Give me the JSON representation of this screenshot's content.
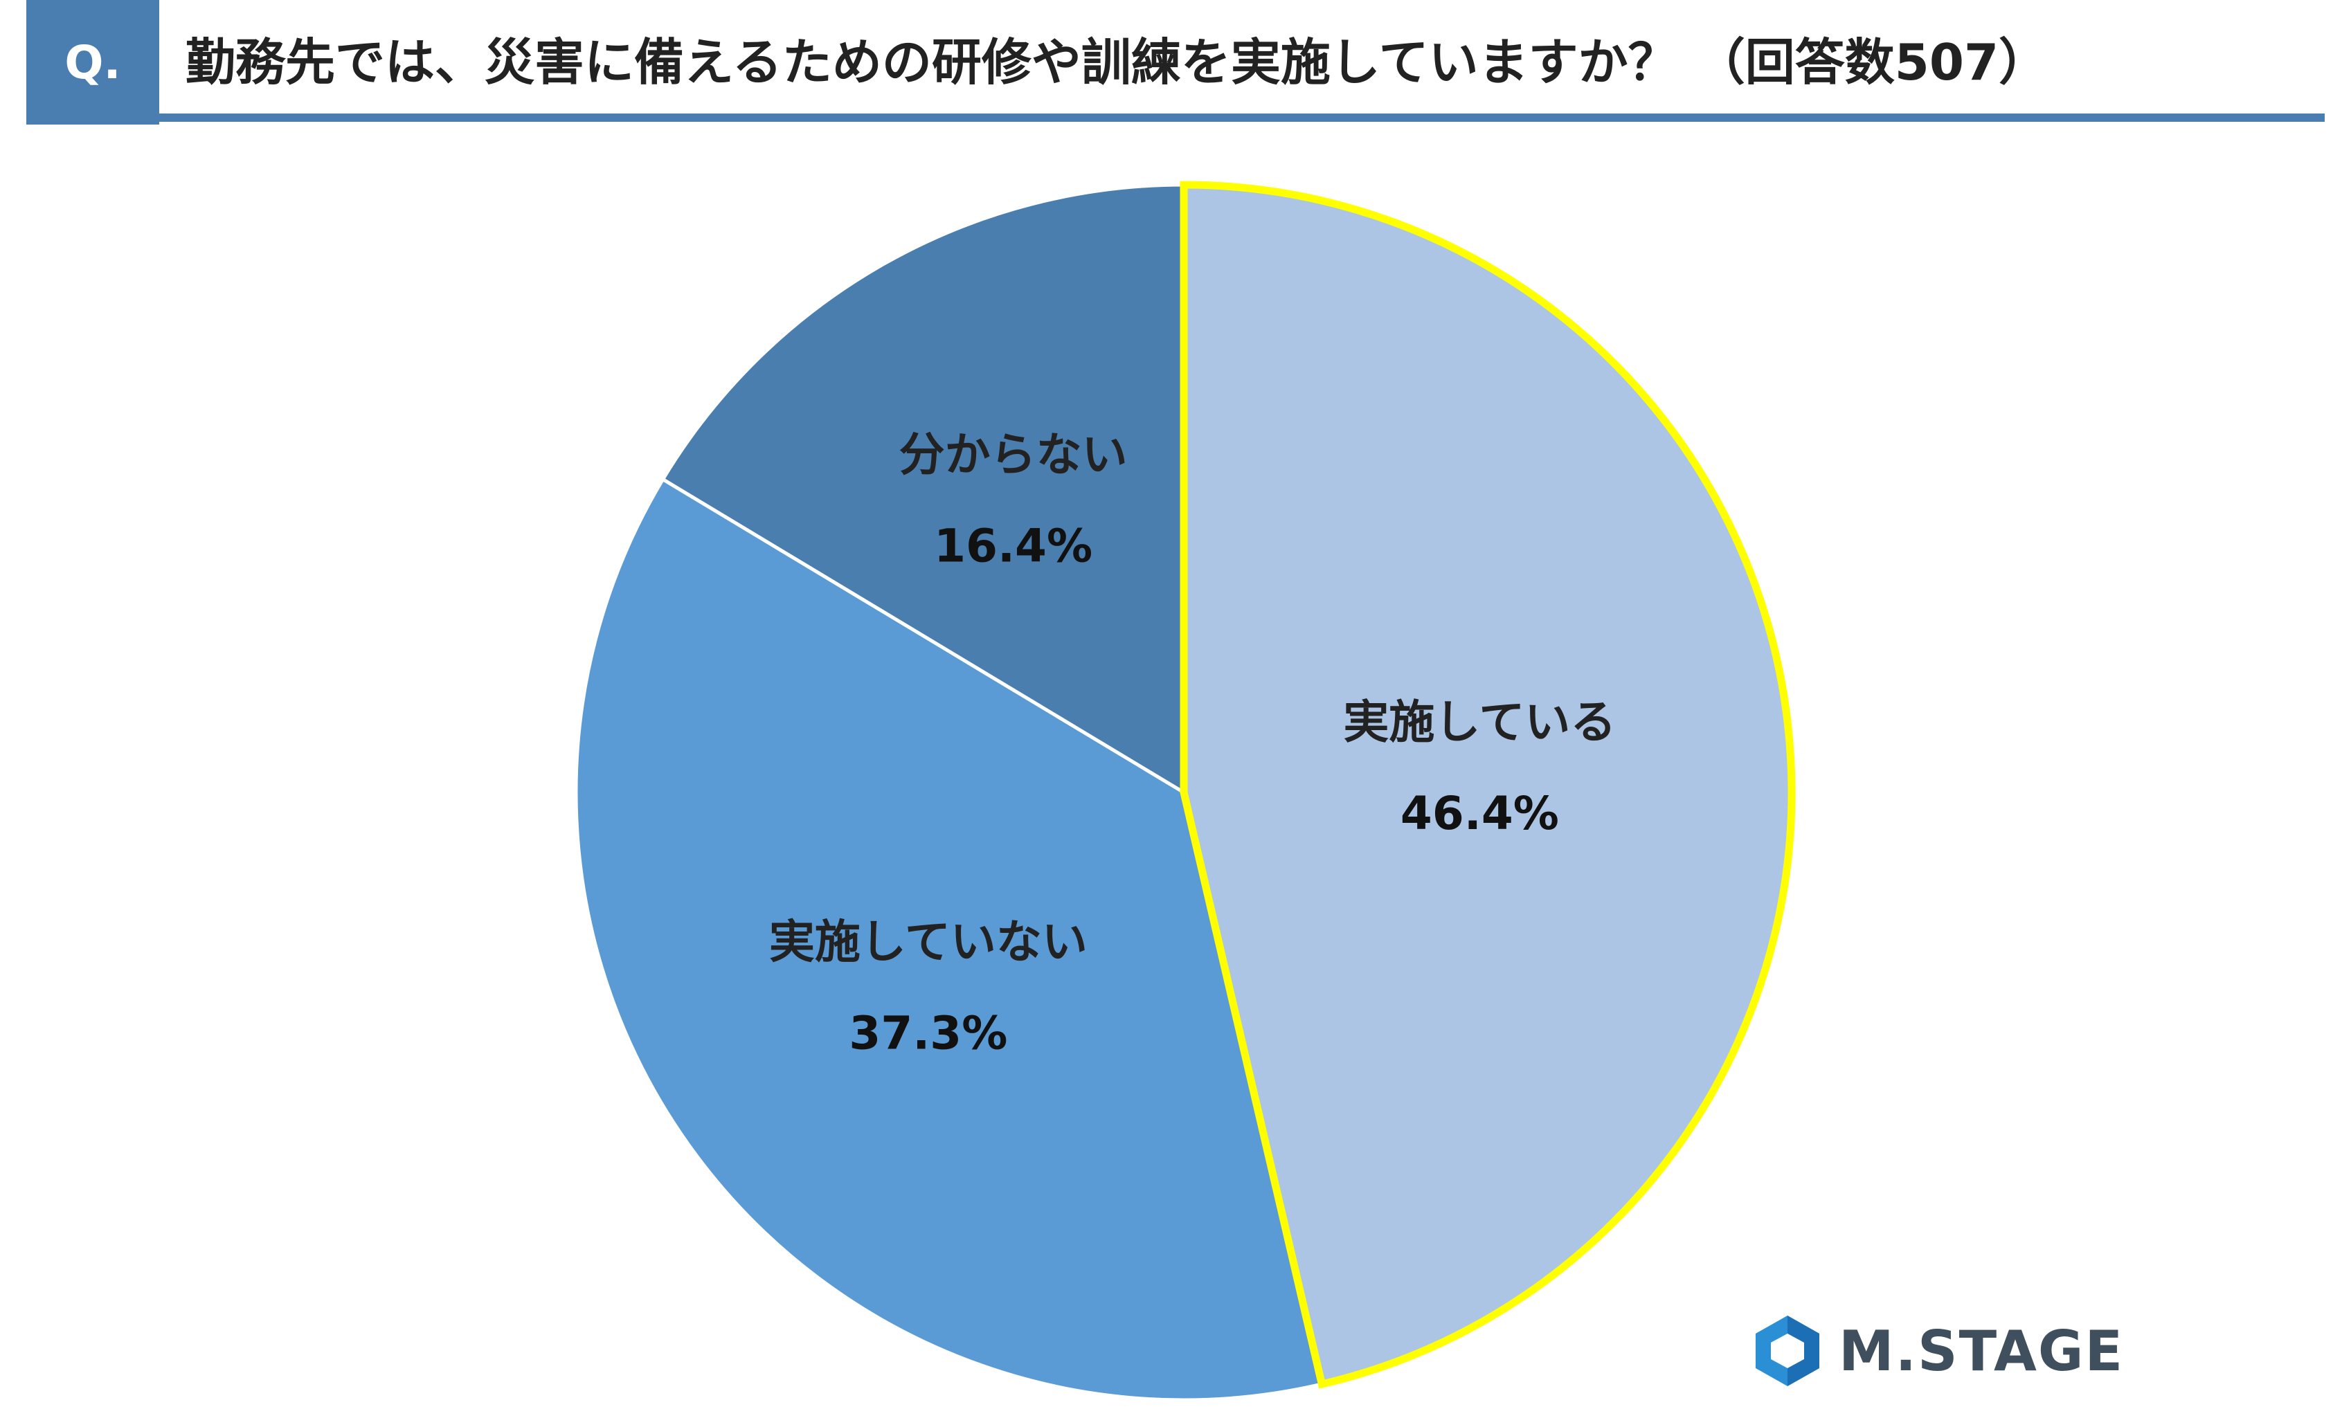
{
  "header": {
    "badge": "Q.",
    "title": "勤務先では、災害に備えるための研修や訓練を実施していますか？ （回答数507）"
  },
  "chart_data": {
    "type": "pie",
    "title": "勤務先では、災害に備えるための研修や訓練を実施していますか？ （回答数507）",
    "slices": [
      {
        "label": "実施している",
        "value": 46.4,
        "display": "46.4%",
        "color": "#adc5e5",
        "highlight": true
      },
      {
        "label": "実施していない",
        "value": 37.3,
        "display": "37.3%",
        "color": "#5b9bd5",
        "highlight": false
      },
      {
        "label": "分からない",
        "value": 16.4,
        "display": "16.4%",
        "color": "#4a7eae",
        "highlight": false
      }
    ],
    "start_angle": "12 o'clock",
    "direction": "clockwise",
    "highlight_color": "#ffff00"
  },
  "logo": {
    "text": "M.STAGE"
  }
}
